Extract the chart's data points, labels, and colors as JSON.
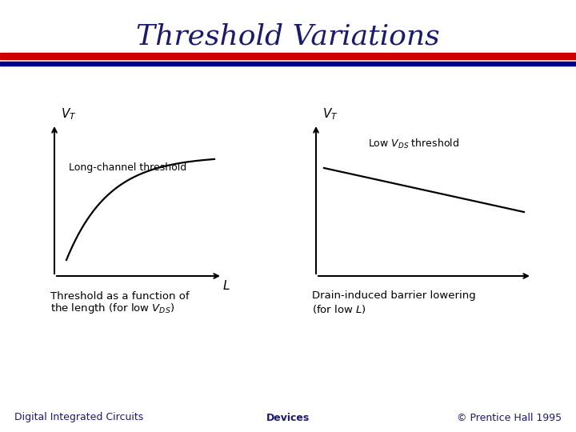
{
  "title": "Threshold Variations",
  "title_color": "#1a1a6e",
  "title_fontsize": 26,
  "background_color": "#ffffff",
  "divider_red": "#cc0000",
  "divider_blue": "#00008b",
  "footer_left": "Digital Integrated Circuits",
  "footer_center": "Devices",
  "footer_right": "© Prentice Hall 1995",
  "footer_color": "#1a1a6e",
  "footer_fontsize": 9,
  "left_annotation": "Long-channel threshold",
  "right_annotation": "Low $V_{DS}$ threshold",
  "left_caption1": "Threshold as a function of",
  "left_caption2": "the length (for low $V_{DS}$)",
  "right_caption1": "Drain-induced barrier lowering",
  "right_caption2": "(for low $L$)"
}
